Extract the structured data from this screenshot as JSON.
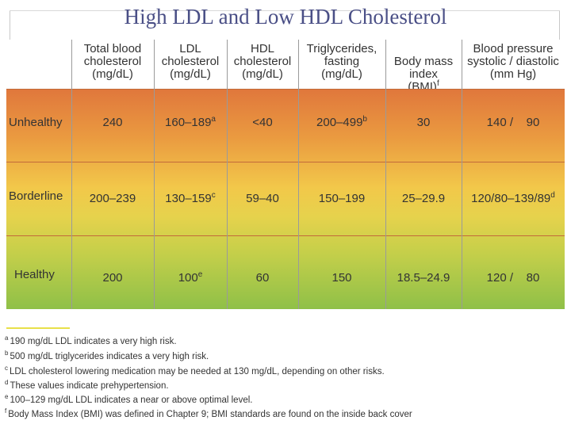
{
  "title": "High LDL and Low HDL Cholesterol",
  "headers": [
    "Total blood\ncholesterol\n(mg/dL)",
    "LDL\ncholesterol\n(mg/dL)",
    "HDL\ncholesterol\n(mg/dL)",
    "Triglycerides,\nfasting\n(mg/dL)",
    "Body mass\nindex\n(BMI)",
    "Blood pressure\nsystolic / diastolic\n(mm Hg)"
  ],
  "header_sups": {
    "bmi": "f"
  },
  "rows": [
    {
      "label": "Unhealthy",
      "total": "240",
      "ldl": "160–189",
      "ldl_sup": "a",
      "hdl": "<40",
      "trig": "200–499",
      "trig_sup": "b",
      "bmi": "30",
      "bp": "140 /    90"
    },
    {
      "label": "Borderline",
      "total": "200–239",
      "ldl": "130–159",
      "ldl_sup": "c",
      "hdl": "59–40",
      "trig": "150–199",
      "bmi": "25–29.9",
      "bp": "120/80–139/89",
      "bp_sup": "d"
    },
    {
      "label": "Healthy",
      "total": "200",
      "ldl": "100",
      "ldl_sup": "e",
      "hdl": "60",
      "trig": "150",
      "bmi": "18.5–24.9",
      "bp": "120 /    80"
    }
  ],
  "footnotes": [
    {
      "mark": "a",
      "text": "190 mg/dL LDL indicates a very high risk."
    },
    {
      "mark": "b",
      "text": "500 mg/dL triglycerides indicates a very high risk."
    },
    {
      "mark": "c",
      "text": "LDL cholesterol lowering medication may be needed at 130 mg/dL, depending on other risks."
    },
    {
      "mark": "d",
      "text": "These values indicate prehypertension."
    },
    {
      "mark": "e",
      "text": "100–129 mg/dL LDL indicates a near or above optimal level."
    },
    {
      "mark": "f",
      "text": "Body Mass Index (BMI) was defined in Chapter 9; BMI standards are found on the inside back cover"
    }
  ]
}
